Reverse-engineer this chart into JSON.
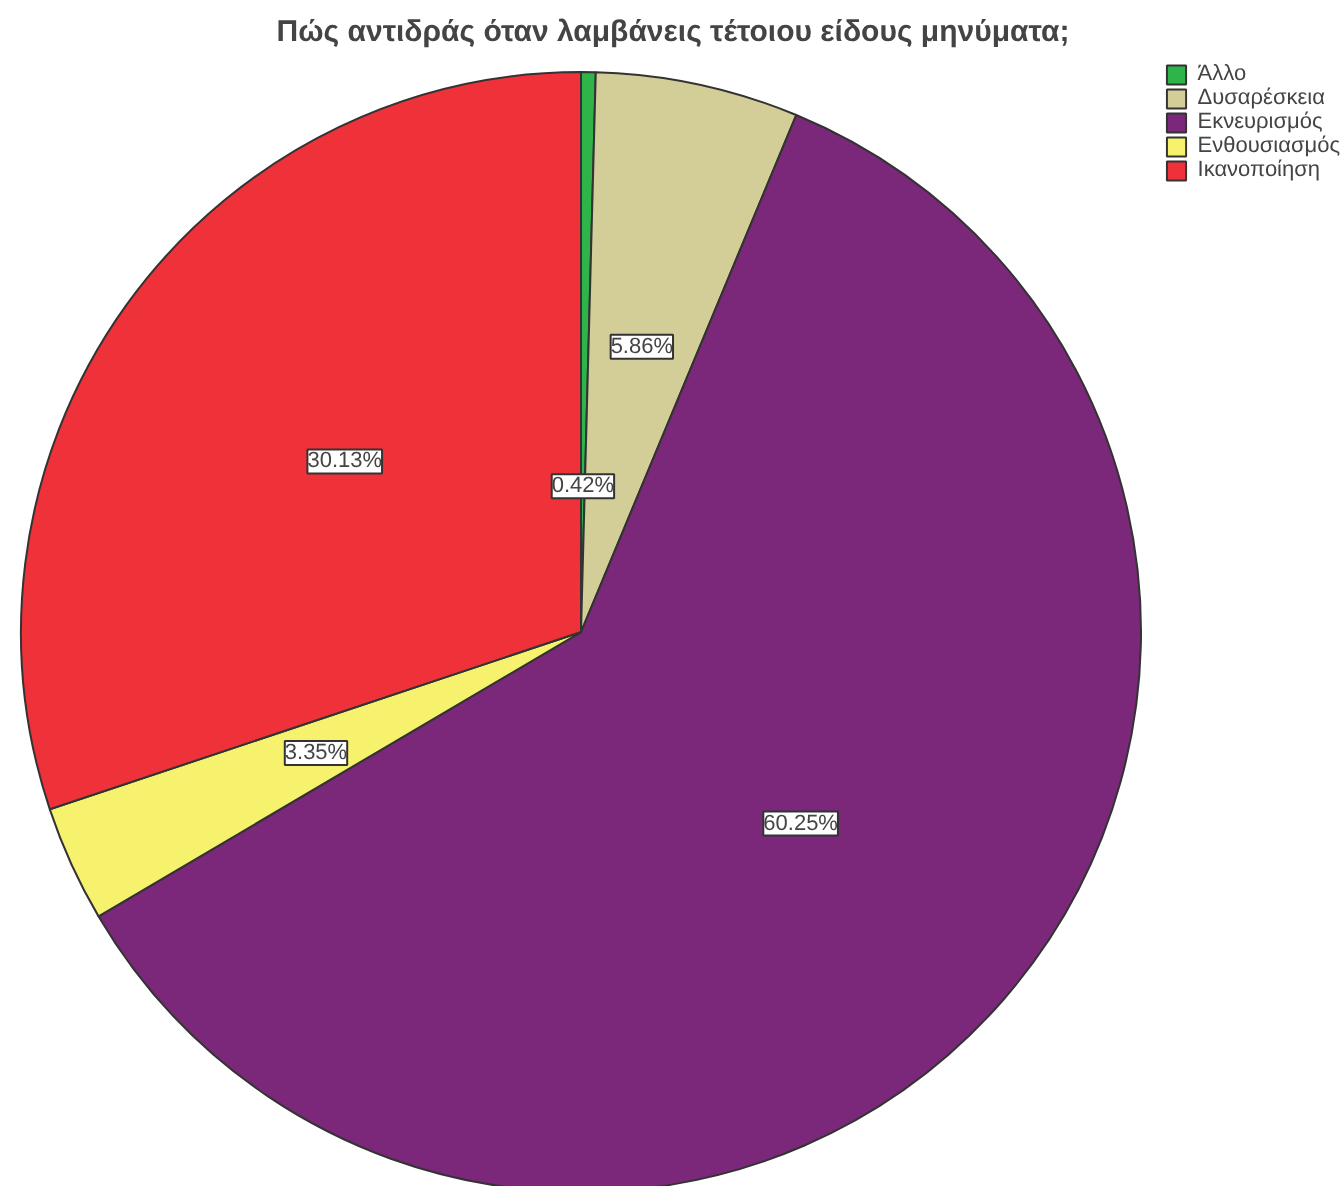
{
  "chart_data": {
    "type": "pie",
    "title": "Πώς αντιδράς όταν λαμβάνεις τέτοιου είδους μηνύματα;",
    "categories": [
      "Άλλο",
      "Δυσαρέσκεια",
      "Εκνευρισμός",
      "Ενθουσιασμός",
      "Ικανοποίηση"
    ],
    "values": [
      0.42,
      5.86,
      60.25,
      3.35,
      30.13
    ],
    "value_labels": [
      "0.42%",
      "5.86%",
      "60.25%",
      "3.35%",
      "30.13%"
    ],
    "colors": [
      "#2fb44a",
      "#d3cd98",
      "#7b287a",
      "#f7f26e",
      "#ef3139"
    ],
    "legend": "top right"
  }
}
